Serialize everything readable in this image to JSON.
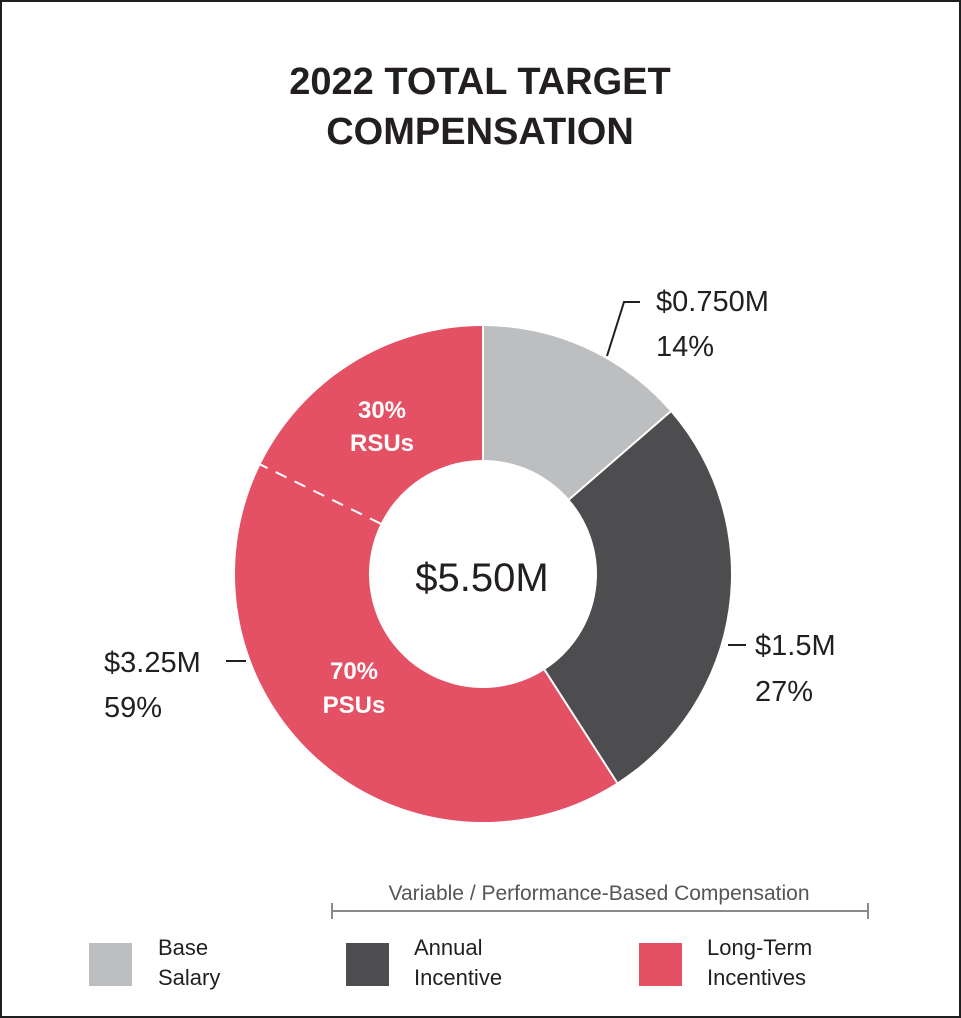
{
  "chart_data": {
    "type": "pie",
    "title_lines": [
      "2022 TOTAL TARGET",
      "COMPENSATION"
    ],
    "center_label": "$5.50M",
    "slices": [
      {
        "name": "Base Salary",
        "value": 0.75,
        "percent": 14,
        "amount_label": "$0.750M",
        "percent_label": "14%",
        "color": "#bcbec0"
      },
      {
        "name": "Annual Incentive",
        "value": 1.5,
        "percent": 27,
        "amount_label": "$1.5M",
        "percent_label": "27%",
        "color": "#4d4d4f"
      },
      {
        "name": "Long-Term Incentives",
        "value": 3.25,
        "percent": 59,
        "amount_label": "$3.25M",
        "percent_label": "59%",
        "color": "#e45064",
        "sub_split": [
          {
            "name": "RSUs",
            "percent": 30,
            "label_lines": [
              "30%",
              "RSUs"
            ]
          },
          {
            "name": "PSUs",
            "percent": 70,
            "label_lines": [
              "70%",
              "PSUs"
            ]
          }
        ]
      }
    ],
    "legend": [
      {
        "lines": [
          "Base",
          "Salary"
        ],
        "color": "#bcbec0"
      },
      {
        "lines": [
          "Annual",
          "Incentive"
        ],
        "color": "#4d4d4f"
      },
      {
        "lines": [
          "Long-Term",
          "Incentives"
        ],
        "color": "#e45064"
      }
    ],
    "bracket_label": "Variable / Performance-Based Compensation"
  }
}
